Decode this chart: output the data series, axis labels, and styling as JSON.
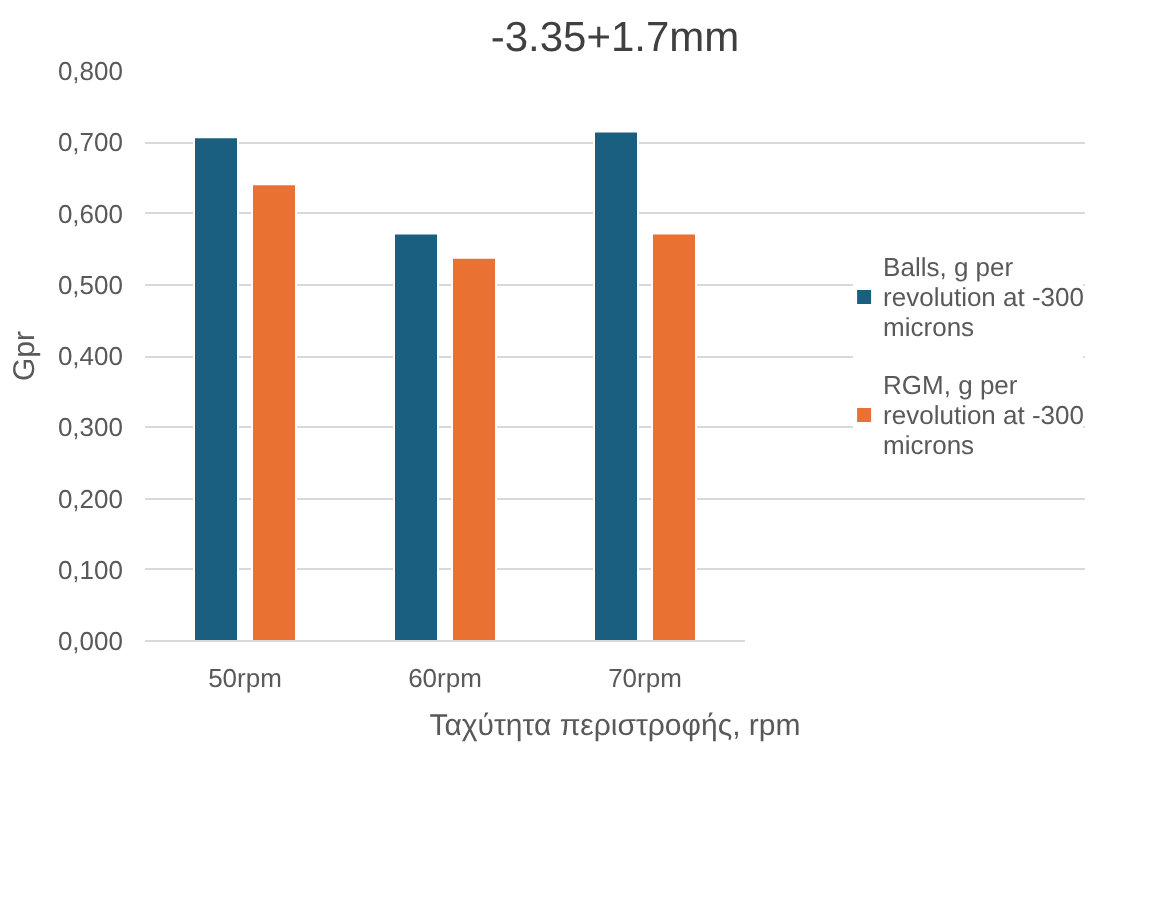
{
  "chart_data": {
    "type": "bar",
    "title": "-3.35+1.7mm",
    "xlabel": "Ταχύτητα περιστροφής, rpm",
    "ylabel": "Gpr",
    "categories": [
      "50rpm",
      "60rpm",
      "70rpm"
    ],
    "series": [
      {
        "name": "Balls, g per revolution at -300 microns",
        "color": "#1a5f80",
        "values": [
          0.707,
          0.572,
          0.715
        ]
      },
      {
        "name": "RGM, g per revolution at -300 microns",
        "color": "#e97132",
        "values": [
          0.641,
          0.538,
          0.572
        ]
      }
    ],
    "ylim": [
      0,
      0.8
    ],
    "yticks": [
      {
        "value": 0,
        "label": "0,000"
      },
      {
        "value": 0.1,
        "label": "0,100"
      },
      {
        "value": 0.2,
        "label": "0,200"
      },
      {
        "value": 0.3,
        "label": "0,300"
      },
      {
        "value": 0.4,
        "label": "0,400"
      },
      {
        "value": 0.5,
        "label": "0,500"
      },
      {
        "value": 0.6,
        "label": "0,600"
      },
      {
        "value": 0.7,
        "label": "0,700"
      },
      {
        "value": 0.8,
        "label": "0,800"
      }
    ],
    "grid": "y",
    "legend": "right"
  }
}
